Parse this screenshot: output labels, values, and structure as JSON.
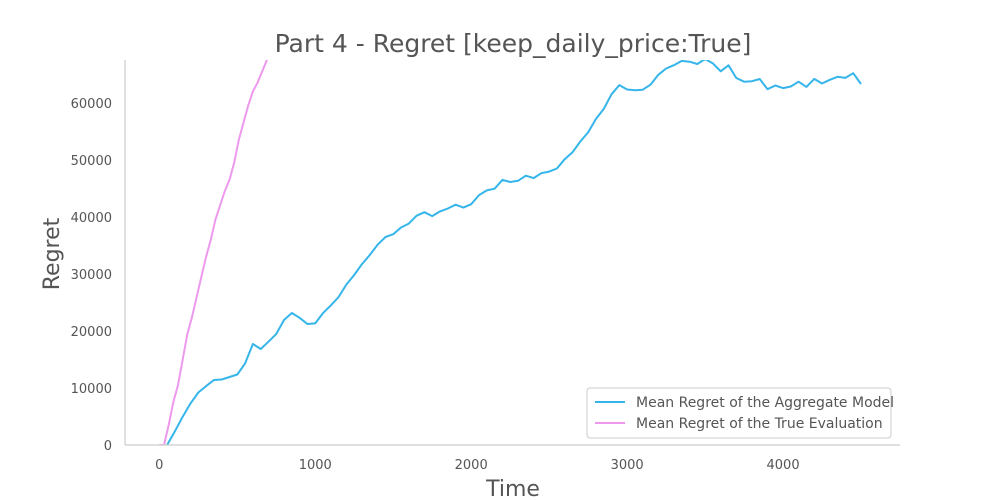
{
  "chart_data": {
    "type": "line",
    "title": "Part 4 - Regret [keep_daily_price:True]",
    "xlabel": "Time",
    "ylabel": "Regret",
    "xlim": [
      -220,
      4750
    ],
    "ylim": [
      0,
      67500
    ],
    "xticks": [
      0,
      1000,
      2000,
      3000,
      4000
    ],
    "xtick_labels": [
      "0",
      "1000",
      "2000",
      "3000",
      "4000"
    ],
    "yticks": [
      0,
      10000,
      20000,
      30000,
      40000,
      50000,
      60000
    ],
    "ytick_labels": [
      "0",
      "10000",
      "20000",
      "30000",
      "40000",
      "50000",
      "60000"
    ],
    "grid": false,
    "legend_position": "lower-right",
    "series": [
      {
        "name": "Mean Regret of the Aggregate Model",
        "color": "#35b5ea",
        "x": [
          50,
          100,
          150,
          200,
          250,
          300,
          350,
          400,
          450,
          500,
          550,
          600,
          650,
          700,
          750,
          800,
          850,
          900,
          950,
          1000,
          1050,
          1100,
          1150,
          1200,
          1250,
          1300,
          1350,
          1400,
          1450,
          1500,
          1550,
          1600,
          1650,
          1700,
          1750,
          1800,
          1850,
          1900,
          1950,
          2000,
          2050,
          2100,
          2150,
          2200,
          2250,
          2300,
          2350,
          2400,
          2450,
          2500,
          2550,
          2600,
          2650,
          2700,
          2750,
          2800,
          2850,
          2900,
          2950,
          3000,
          3050,
          3100,
          3150,
          3200,
          3250,
          3300,
          3350,
          3400,
          3450,
          3500,
          3550,
          3600,
          3650,
          3700,
          3750,
          3800,
          3850,
          3900,
          3950,
          4000,
          4050,
          4100,
          4150,
          4200,
          4250,
          4300,
          4350,
          4400,
          4450,
          4500
        ],
        "y": [
          0,
          2500,
          4800,
          7500,
          9000,
          10500,
          11300,
          11500,
          12000,
          12200,
          14500,
          17500,
          17000,
          18000,
          19500,
          22000,
          23000,
          22500,
          21000,
          21500,
          23000,
          24500,
          26000,
          28000,
          30000,
          31500,
          33500,
          35000,
          36500,
          37000,
          38000,
          39000,
          40000,
          41000,
          40000,
          41000,
          41500,
          42000,
          41800,
          42000,
          44000,
          44500,
          45000,
          46500,
          46000,
          46500,
          47000,
          47000,
          47500,
          48000,
          48500,
          50000,
          51500,
          53000,
          55000,
          57000,
          59000,
          61500,
          63000,
          62500,
          62000,
          62500,
          63000,
          65000,
          66000,
          66500,
          67500,
          67000,
          67000,
          67500,
          67000,
          65500,
          66500,
          64500,
          63500,
          64000,
          64000,
          62500,
          63000,
          62500,
          63000,
          63500,
          63000,
          64000,
          63500,
          64000,
          64500,
          64500,
          65000,
          63500
        ]
      },
      {
        "name": "Mean Regret of the True Evaluation",
        "color": "#ee99ee",
        "x": [
          0,
          30,
          60,
          90,
          120,
          150,
          180,
          210,
          240,
          270,
          300,
          330,
          360,
          390,
          420,
          450,
          480,
          510,
          540,
          570,
          600,
          630,
          660,
          690,
          700
        ],
        "y": [
          0,
          0,
          3500,
          7500,
          10500,
          15000,
          19500,
          22500,
          26000,
          29500,
          33000,
          36000,
          39500,
          42000,
          44500,
          46500,
          49500,
          53500,
          56500,
          59500,
          62000,
          63500,
          65500,
          67500,
          68000
        ]
      }
    ]
  }
}
